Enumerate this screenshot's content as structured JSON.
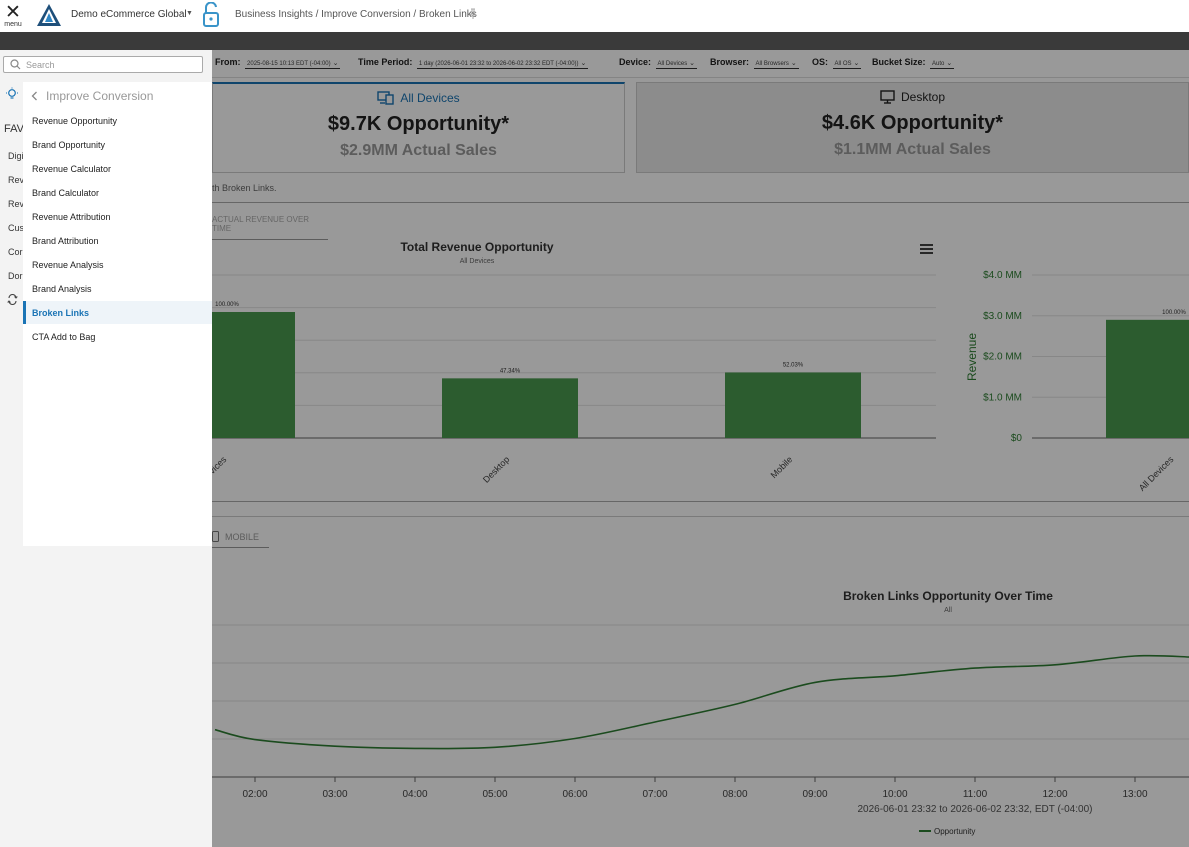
{
  "topbar": {
    "menu_label": "menu",
    "org_name": "Demo eCommerce Global",
    "breadcrumb": "Business Insights / Improve Conversion / Broken Links"
  },
  "filters": {
    "from_label": "From:",
    "from_value": "2025-08-15 10:13 EDT (-04:00)",
    "period_label": "Time Period:",
    "period_value": "1 day (2026-06-01 23:32 to 2026-06-02 23:32 EDT (-04:00))",
    "device_label": "Device:",
    "device_value": "All Devices",
    "browser_label": "Browser:",
    "browser_value": "All Browsers",
    "os_label": "OS:",
    "os_value": "All OS",
    "bucket_label": "Bucket Size:",
    "bucket_value": "Auto"
  },
  "cards": [
    {
      "title": "All Devices",
      "opportunity": "$9.7K Opportunity*",
      "sales": "$2.9MM Actual Sales"
    },
    {
      "title": "Desktop",
      "opportunity": "$4.6K Opportunity*",
      "sales": "$1.1MM Actual Sales"
    }
  ],
  "note": "th Broken Links.",
  "tabs": {
    "revenue_over_time": "ACTUAL REVENUE OVER TIME",
    "mobile": "MOBILE"
  },
  "chart_data": [
    {
      "type": "bar",
      "title": "Total Revenue Opportunity",
      "subtitle": "All Devices",
      "categories": [
        "vices",
        "Desktop",
        "Mobile"
      ],
      "values": [
        100.0,
        47.34,
        52.03
      ],
      "data_labels": [
        "100.00%",
        "47.34%",
        "52.03%"
      ],
      "ylim": [
        0,
        100
      ],
      "color": "#4a9a4f"
    },
    {
      "type": "bar",
      "title": "",
      "ylabel": "Revenue",
      "y_ticks": [
        "$0",
        "$1.0 MM",
        "$2.0 MM",
        "$3.0 MM",
        "$4.0 MM"
      ],
      "ylim": [
        0,
        4.0
      ],
      "categories": [
        "All Devices"
      ],
      "values": [
        2.9
      ],
      "data_labels": [
        "100.00%"
      ],
      "color": "#4a9a4f"
    },
    {
      "type": "line",
      "title": "Broken Links Opportunity Over Time",
      "subtitle": "All",
      "xlabel": "2026-06-01 23:32 to 2026-06-02 23:32, EDT (-04:00)",
      "x_ticks": [
        "02:00",
        "03:00",
        "04:00",
        "05:00",
        "06:00",
        "07:00",
        "08:00",
        "09:00",
        "10:00",
        "11:00",
        "12:00",
        "13:00"
      ],
      "series": [
        {
          "name": "Opportunity",
          "x": [
            1.5,
            2,
            3,
            4,
            5,
            6,
            7,
            8,
            9,
            10,
            11,
            12,
            13,
            13.7
          ],
          "values": [
            0.33,
            0.24,
            0.18,
            0.16,
            0.17,
            0.25,
            0.4,
            0.56,
            0.76,
            0.82,
            0.89,
            0.92,
            1.0,
            0.99
          ]
        }
      ],
      "color": "#2e7d32"
    }
  ],
  "drawer": {
    "search_placeholder": "Search",
    "section_title": "Improve Conversion",
    "items": [
      "Revenue Opportunity",
      "Brand Opportunity",
      "Revenue Calculator",
      "Brand Calculator",
      "Revenue Attribution",
      "Brand Attribution",
      "Revenue Analysis",
      "Brand Analysis",
      "Broken Links",
      "CTA Add to Bag"
    ],
    "active_index": 8
  },
  "rail": {
    "fav": "FAV",
    "items": [
      "Digi",
      "Rev",
      "Rev",
      "Cus",
      "Cor",
      "Dor"
    ]
  },
  "colors": {
    "accent": "#1a74b5",
    "bar": "#4a9a4f",
    "line": "#2e7d32"
  }
}
